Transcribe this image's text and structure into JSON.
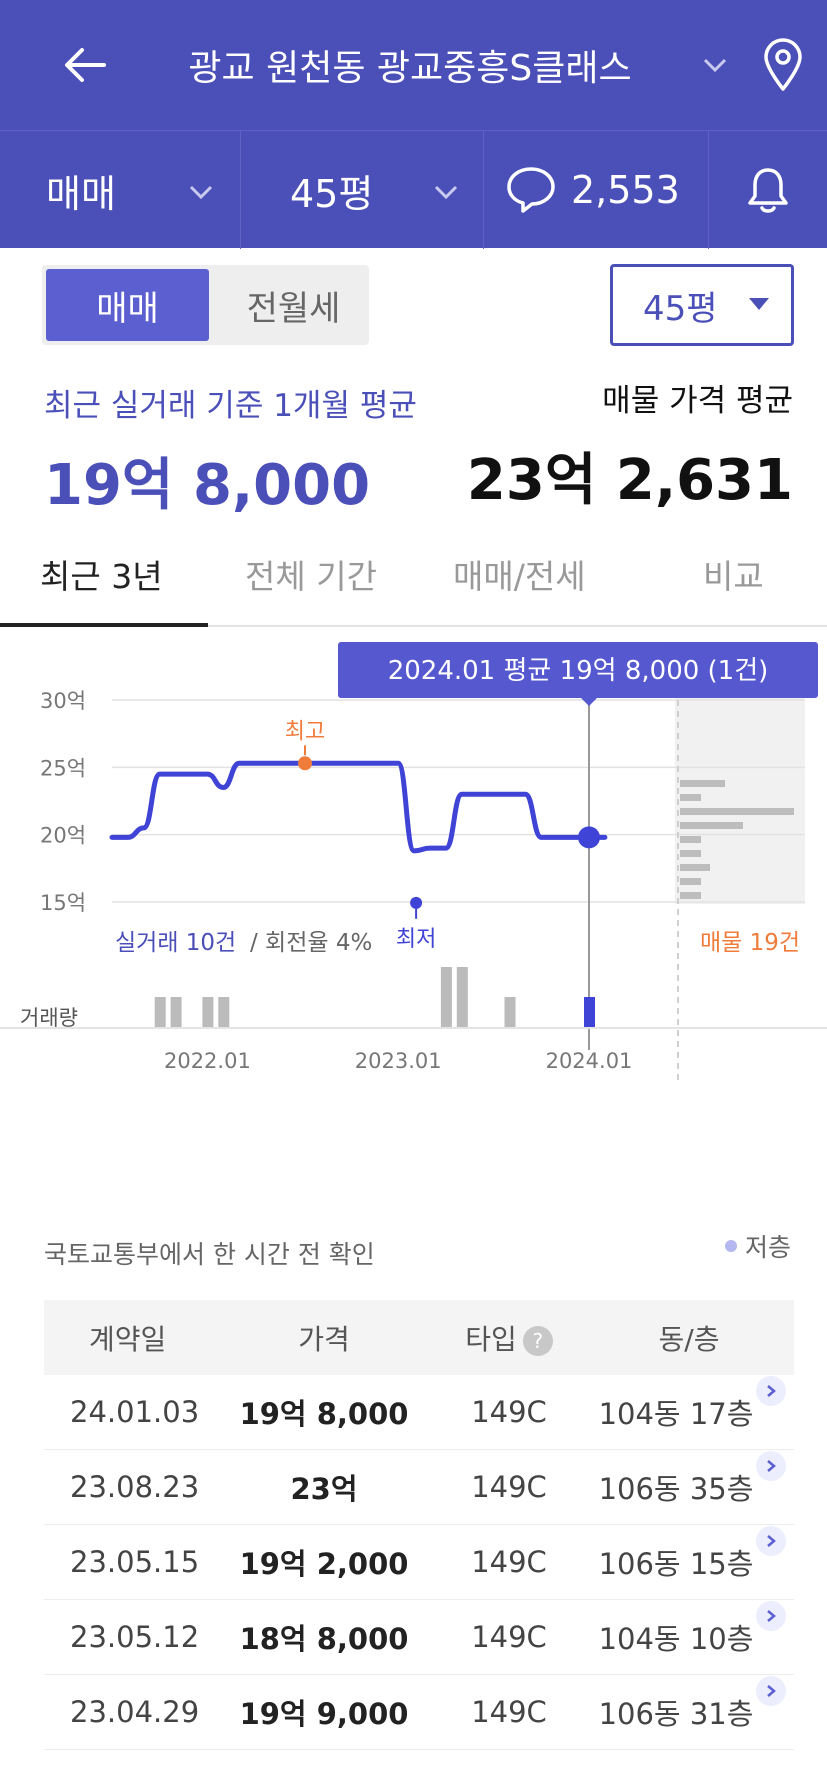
{
  "header": {
    "back_icon": "arrow-left-icon",
    "title": "광교 원천동 광교중흥S클래스",
    "dropdown_icon": "chevron-down-icon",
    "location_icon": "map-pin-icon"
  },
  "subbar": {
    "trade_type": "매매",
    "area": "45평",
    "comment_count": "2,553",
    "comment_icon": "speech-bubble-icon",
    "alert_icon": "bell-icon"
  },
  "toggle": {
    "sale": "매매",
    "rent": "전월세",
    "active": "매매"
  },
  "area_select": "45평",
  "summary": {
    "recent_label": "최근 실거래 기준 1개월 평균",
    "recent_value": "19억 8,000",
    "listing_label": "매물 가격 평균",
    "listing_value": "23억 2,631"
  },
  "tabs": [
    "최근 3년",
    "전체 기간",
    "매매/전세",
    "비교"
  ],
  "chart_data": {
    "type": "line",
    "y_ticks": [
      "30억",
      "25억",
      "20억",
      "15억"
    ],
    "ylim": [
      15,
      30
    ],
    "x_ticks": [
      "2022.01",
      "2023.01",
      "2024.01"
    ],
    "series": [
      {
        "x": [
          "2021.07",
          "2021.08",
          "2021.09",
          "2021.10",
          "2021.11",
          "2021.12",
          "2022.01",
          "2022.02",
          "2022.03",
          "2022.04",
          "2022.05",
          "2022.06",
          "2022.07",
          "2022.08",
          "2022.09",
          "2022.10",
          "2022.11",
          "2022.12",
          "2023.01",
          "2023.02",
          "2023.03",
          "2023.04",
          "2023.05",
          "2023.06",
          "2023.07",
          "2023.08",
          "2023.09",
          "2023.10",
          "2023.11",
          "2023.12",
          "2024.01",
          "2024.02"
        ],
        "values": [
          19.8,
          19.8,
          20.5,
          24.5,
          24.5,
          24.5,
          24.5,
          23.5,
          25.3,
          25.3,
          25.3,
          25.3,
          25.3,
          25.3,
          25.3,
          25.3,
          25.3,
          25.3,
          25.3,
          18.8,
          19.0,
          19.0,
          23.0,
          23.0,
          23.0,
          23.0,
          23.0,
          19.8,
          19.8,
          19.8,
          19.8,
          19.8
        ]
      }
    ],
    "tooltip": "2024.01 평균 19억 8,000 (1건)",
    "max_label": "최고",
    "min_label": "최저",
    "deal_count_label": "실거래 10건",
    "turnover_label": "/ 회전율 4%",
    "listing_count_label": "매물 19건",
    "volume_label": "거래량",
    "volume": [
      {
        "x": "2021.10",
        "count": 1
      },
      {
        "x": "2021.11",
        "count": 1
      },
      {
        "x": "2022.01",
        "count": 1
      },
      {
        "x": "2022.02",
        "count": 1
      },
      {
        "x": "2023.04",
        "count": 2
      },
      {
        "x": "2023.05",
        "count": 2
      },
      {
        "x": "2023.08",
        "count": 1
      },
      {
        "x": "2024.01",
        "count": 1
      }
    ],
    "listing_distribution": [
      0.15,
      0.07,
      0.38,
      0.21,
      0.07,
      0.07,
      0.1,
      0.07,
      0.07
    ],
    "line_color": "#3f43d6",
    "max_color": "#f07c3c",
    "min_color": "#3f43d6"
  },
  "source_note": "국토교통부에서 한 시간 전 확인",
  "legend": "저층",
  "table": {
    "headers": [
      "계약일",
      "가격",
      "타입",
      "동/층"
    ],
    "help_icon": "question-icon",
    "rows": [
      {
        "date": "24.01.03",
        "price": "19억 8,000",
        "type": "149C",
        "unit": "104동 17층"
      },
      {
        "date": "23.08.23",
        "price": "23억",
        "type": "149C",
        "unit": "106동 35층"
      },
      {
        "date": "23.05.15",
        "price": "19억 2,000",
        "type": "149C",
        "unit": "106동 15층"
      },
      {
        "date": "23.05.12",
        "price": "18억 8,000",
        "type": "149C",
        "unit": "104동 10층"
      },
      {
        "date": "23.04.29",
        "price": "19억 9,000",
        "type": "149C",
        "unit": "106동 31층"
      }
    ]
  }
}
